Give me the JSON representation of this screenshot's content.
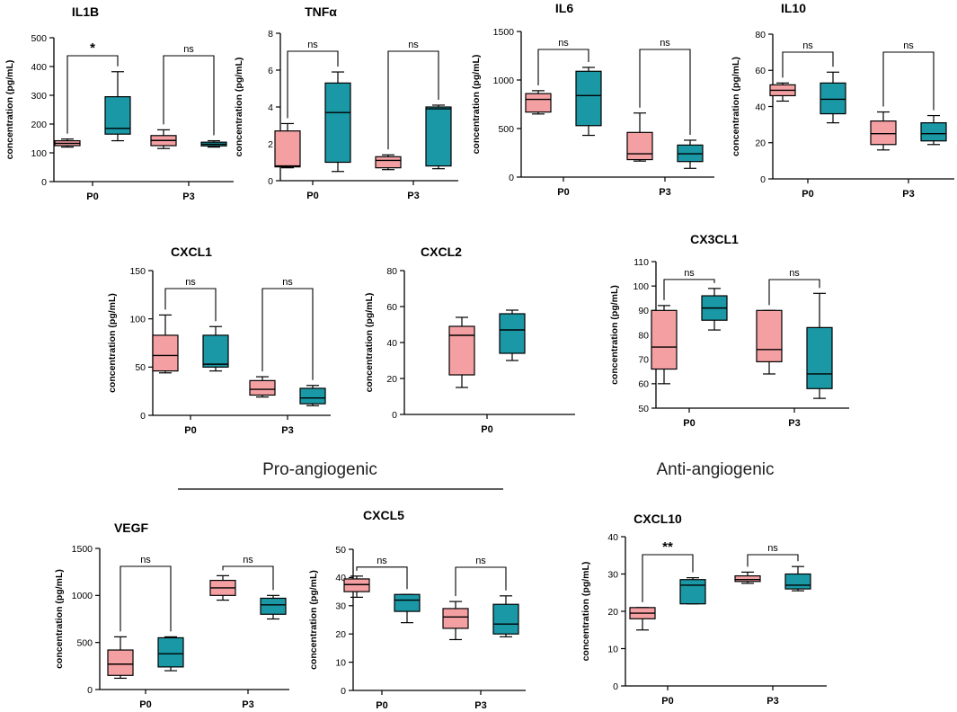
{
  "colors": {
    "group_a": "#f4a0a3",
    "group_b": "#1a98a6",
    "line": "#000000"
  },
  "sections": {
    "pro_angiogenic": "Pro-angiogenic",
    "anti_angiogenic": "Anti-angiogenic"
  },
  "chart_data": [
    {
      "id": "il1b",
      "type": "box",
      "title": "IL1B",
      "ylabel": "concentration (pg/mL)",
      "ylim": [
        0,
        500
      ],
      "yticks": [
        0,
        100,
        200,
        300,
        400,
        500
      ],
      "categories": [
        "P0",
        "P3"
      ],
      "boxes": [
        {
          "group": "P0",
          "series": "a",
          "min": 120,
          "q1": 125,
          "median": 133,
          "q3": 142,
          "max": 148
        },
        {
          "group": "P0",
          "series": "b",
          "min": 142,
          "q1": 165,
          "median": 185,
          "q3": 295,
          "max": 382
        },
        {
          "group": "P3",
          "series": "a",
          "min": 115,
          "q1": 125,
          "median": 143,
          "q3": 160,
          "max": 180
        },
        {
          "group": "P3",
          "series": "b",
          "min": 120,
          "q1": 124,
          "median": 130,
          "q3": 137,
          "max": 142
        }
      ],
      "annotations": [
        {
          "group": "P0",
          "label": "*"
        },
        {
          "group": "P3",
          "label": "ns"
        }
      ]
    },
    {
      "id": "tnfa",
      "type": "box",
      "title": "TNFα",
      "ylabel": "concentration (pg/mL)",
      "ylim": [
        0,
        8
      ],
      "yticks": [
        0,
        2,
        4,
        6,
        8
      ],
      "categories": [
        "P0",
        "P3"
      ],
      "boxes": [
        {
          "group": "P0",
          "series": "a",
          "min": 0.7,
          "q1": 0.75,
          "median": 0.8,
          "q3": 2.7,
          "max": 3.1
        },
        {
          "group": "P0",
          "series": "b",
          "min": 0.5,
          "q1": 1.0,
          "median": 3.7,
          "q3": 5.3,
          "max": 5.9
        },
        {
          "group": "P3",
          "series": "a",
          "min": 0.6,
          "q1": 0.7,
          "median": 1.1,
          "q3": 1.3,
          "max": 1.4
        },
        {
          "group": "P3",
          "series": "b",
          "min": 0.65,
          "q1": 0.8,
          "median": 3.9,
          "q3": 4.0,
          "max": 4.1
        }
      ],
      "annotations": [
        {
          "group": "P0",
          "label": "ns"
        },
        {
          "group": "P3",
          "label": "ns"
        }
      ]
    },
    {
      "id": "il6",
      "type": "box",
      "title": "IL6",
      "ylabel": "concentration (pg/mL)",
      "ylim": [
        0,
        1500
      ],
      "yticks": [
        0,
        500,
        1000,
        1500
      ],
      "categories": [
        "P0",
        "P3"
      ],
      "boxes": [
        {
          "group": "P0",
          "series": "a",
          "min": 650,
          "q1": 670,
          "median": 800,
          "q3": 860,
          "max": 890
        },
        {
          "group": "P0",
          "series": "b",
          "min": 430,
          "q1": 530,
          "median": 840,
          "q3": 1090,
          "max": 1130
        },
        {
          "group": "P3",
          "series": "a",
          "min": 165,
          "q1": 180,
          "median": 240,
          "q3": 460,
          "max": 660
        },
        {
          "group": "P3",
          "series": "b",
          "min": 90,
          "q1": 160,
          "median": 240,
          "q3": 330,
          "max": 380
        }
      ],
      "annotations": [
        {
          "group": "P0",
          "label": "ns"
        },
        {
          "group": "P3",
          "label": "ns"
        }
      ]
    },
    {
      "id": "il10",
      "type": "box",
      "title": "IL10",
      "ylabel": "concentration (pg/mL)",
      "ylim": [
        0,
        80
      ],
      "yticks": [
        0,
        20,
        40,
        60,
        80
      ],
      "categories": [
        "P0",
        "P3"
      ],
      "boxes": [
        {
          "group": "P0",
          "series": "a",
          "min": 43,
          "q1": 46,
          "median": 49,
          "q3": 52,
          "max": 53
        },
        {
          "group": "P0",
          "series": "b",
          "min": 31,
          "q1": 36,
          "median": 44,
          "q3": 53,
          "max": 59
        },
        {
          "group": "P3",
          "series": "a",
          "min": 16,
          "q1": 19,
          "median": 25,
          "q3": 32,
          "max": 37
        },
        {
          "group": "P3",
          "series": "b",
          "min": 19,
          "q1": 21,
          "median": 25,
          "q3": 31,
          "max": 35
        }
      ],
      "annotations": [
        {
          "group": "P0",
          "label": "ns"
        },
        {
          "group": "P3",
          "label": "ns"
        }
      ]
    },
    {
      "id": "cxcl1",
      "type": "box",
      "title": "CXCL1",
      "ylabel": "concentration (pg/mL)",
      "ylim": [
        0,
        150
      ],
      "yticks": [
        0,
        50,
        100,
        150
      ],
      "categories": [
        "P0",
        "P3"
      ],
      "boxes": [
        {
          "group": "P0",
          "series": "a",
          "min": 44,
          "q1": 46,
          "median": 62,
          "q3": 83,
          "max": 104
        },
        {
          "group": "P0",
          "series": "b",
          "min": 46,
          "q1": 50,
          "median": 53,
          "q3": 83,
          "max": 92
        },
        {
          "group": "P3",
          "series": "a",
          "min": 19,
          "q1": 21,
          "median": 27,
          "q3": 36,
          "max": 40
        },
        {
          "group": "P3",
          "series": "b",
          "min": 10,
          "q1": 12,
          "median": 18,
          "q3": 28,
          "max": 31
        }
      ],
      "annotations": [
        {
          "group": "P0",
          "label": "ns"
        },
        {
          "group": "P3",
          "label": "ns"
        }
      ]
    },
    {
      "id": "cxcl2",
      "type": "box",
      "title": "CXCL2",
      "ylabel": "concentration (pg/mL)",
      "ylim": [
        0,
        80
      ],
      "yticks": [
        0,
        20,
        40,
        60,
        80
      ],
      "categories": [
        "P0"
      ],
      "boxes": [
        {
          "group": "P0",
          "series": "a",
          "min": 15,
          "q1": 22,
          "median": 44,
          "q3": 49,
          "max": 54
        },
        {
          "group": "P0",
          "series": "b",
          "min": 30,
          "q1": 34,
          "median": 47,
          "q3": 56,
          "max": 58
        }
      ],
      "annotations": []
    },
    {
      "id": "cx3cl1",
      "type": "box",
      "title": "CX3CL1",
      "ylabel": "concentration (pg/mL)",
      "ylim": [
        50,
        110
      ],
      "yticks": [
        50,
        60,
        70,
        80,
        90,
        100,
        110
      ],
      "categories": [
        "P0",
        "P3"
      ],
      "boxes": [
        {
          "group": "P0",
          "series": "a",
          "min": 60,
          "q1": 66,
          "median": 75,
          "q3": 90,
          "max": 92
        },
        {
          "group": "P0",
          "series": "b",
          "min": 82,
          "q1": 86,
          "median": 91,
          "q3": 96,
          "max": 99
        },
        {
          "group": "P3",
          "series": "a",
          "min": 64,
          "q1": 69,
          "median": 74,
          "q3": 90,
          "max": 90
        },
        {
          "group": "P3",
          "series": "b",
          "min": 54,
          "q1": 58,
          "median": 64,
          "q3": 83,
          "max": 97
        }
      ],
      "annotations": [
        {
          "group": "P0",
          "label": "ns"
        },
        {
          "group": "P3",
          "label": "ns"
        }
      ]
    },
    {
      "id": "vegf",
      "type": "box",
      "title": "VEGF",
      "ylabel": "concentration (pg/mL)",
      "ylim": [
        0,
        1500
      ],
      "yticks": [
        0,
        500,
        1000,
        1500
      ],
      "categories": [
        "P0",
        "P3"
      ],
      "boxes": [
        {
          "group": "P0",
          "series": "a",
          "min": 120,
          "q1": 150,
          "median": 270,
          "q3": 420,
          "max": 560
        },
        {
          "group": "P0",
          "series": "b",
          "min": 200,
          "q1": 240,
          "median": 380,
          "q3": 550,
          "max": 560
        },
        {
          "group": "P3",
          "series": "a",
          "min": 950,
          "q1": 1000,
          "median": 1080,
          "q3": 1160,
          "max": 1210
        },
        {
          "group": "P3",
          "series": "b",
          "min": 750,
          "q1": 800,
          "median": 900,
          "q3": 970,
          "max": 1000
        }
      ],
      "annotations": [
        {
          "group": "P0",
          "label": "ns"
        },
        {
          "group": "P3",
          "label": "ns"
        }
      ]
    },
    {
      "id": "cxcl5",
      "type": "box",
      "title": "CXCL5",
      "ylabel": "concentration (pg/mL)",
      "ylim": [
        0,
        50
      ],
      "yticks": [
        0,
        10,
        20,
        30,
        40,
        50
      ],
      "categories": [
        "P0",
        "P3"
      ],
      "boxes": [
        {
          "group": "P0",
          "series": "a",
          "min": 33,
          "q1": 35,
          "median": 37.5,
          "q3": 39.5,
          "max": 40.5
        },
        {
          "group": "P0",
          "series": "b",
          "min": 24,
          "q1": 28,
          "median": 32,
          "q3": 34,
          "max": 34
        },
        {
          "group": "P3",
          "series": "a",
          "min": 18,
          "q1": 22,
          "median": 26,
          "q3": 29,
          "max": 31.5
        },
        {
          "group": "P3",
          "series": "b",
          "min": 19,
          "q1": 20,
          "median": 23.5,
          "q3": 30.5,
          "max": 33.5
        }
      ],
      "annotations": [
        {
          "group": "P0",
          "label": "ns"
        },
        {
          "group": "P3",
          "label": "ns"
        }
      ]
    },
    {
      "id": "cxcl10",
      "type": "box",
      "title": "CXCL10",
      "ylabel": "concentration (pg/mL)",
      "ylim": [
        0,
        40
      ],
      "yticks": [
        0,
        10,
        20,
        30,
        40
      ],
      "categories": [
        "P0",
        "P3"
      ],
      "boxes": [
        {
          "group": "P0",
          "series": "a",
          "min": 15,
          "q1": 18,
          "median": 19.5,
          "q3": 21,
          "max": 21
        },
        {
          "group": "P0",
          "series": "b",
          "min": 22,
          "q1": 22,
          "median": 27,
          "q3": 28.5,
          "max": 29
        },
        {
          "group": "P3",
          "series": "a",
          "min": 27.5,
          "q1": 28,
          "median": 28.5,
          "q3": 29.5,
          "max": 30.5
        },
        {
          "group": "P3",
          "series": "b",
          "min": 25.5,
          "q1": 26,
          "median": 27,
          "q3": 30,
          "max": 32
        }
      ],
      "annotations": [
        {
          "group": "P0",
          "label": "**"
        },
        {
          "group": "P3",
          "label": "ns"
        }
      ]
    }
  ]
}
